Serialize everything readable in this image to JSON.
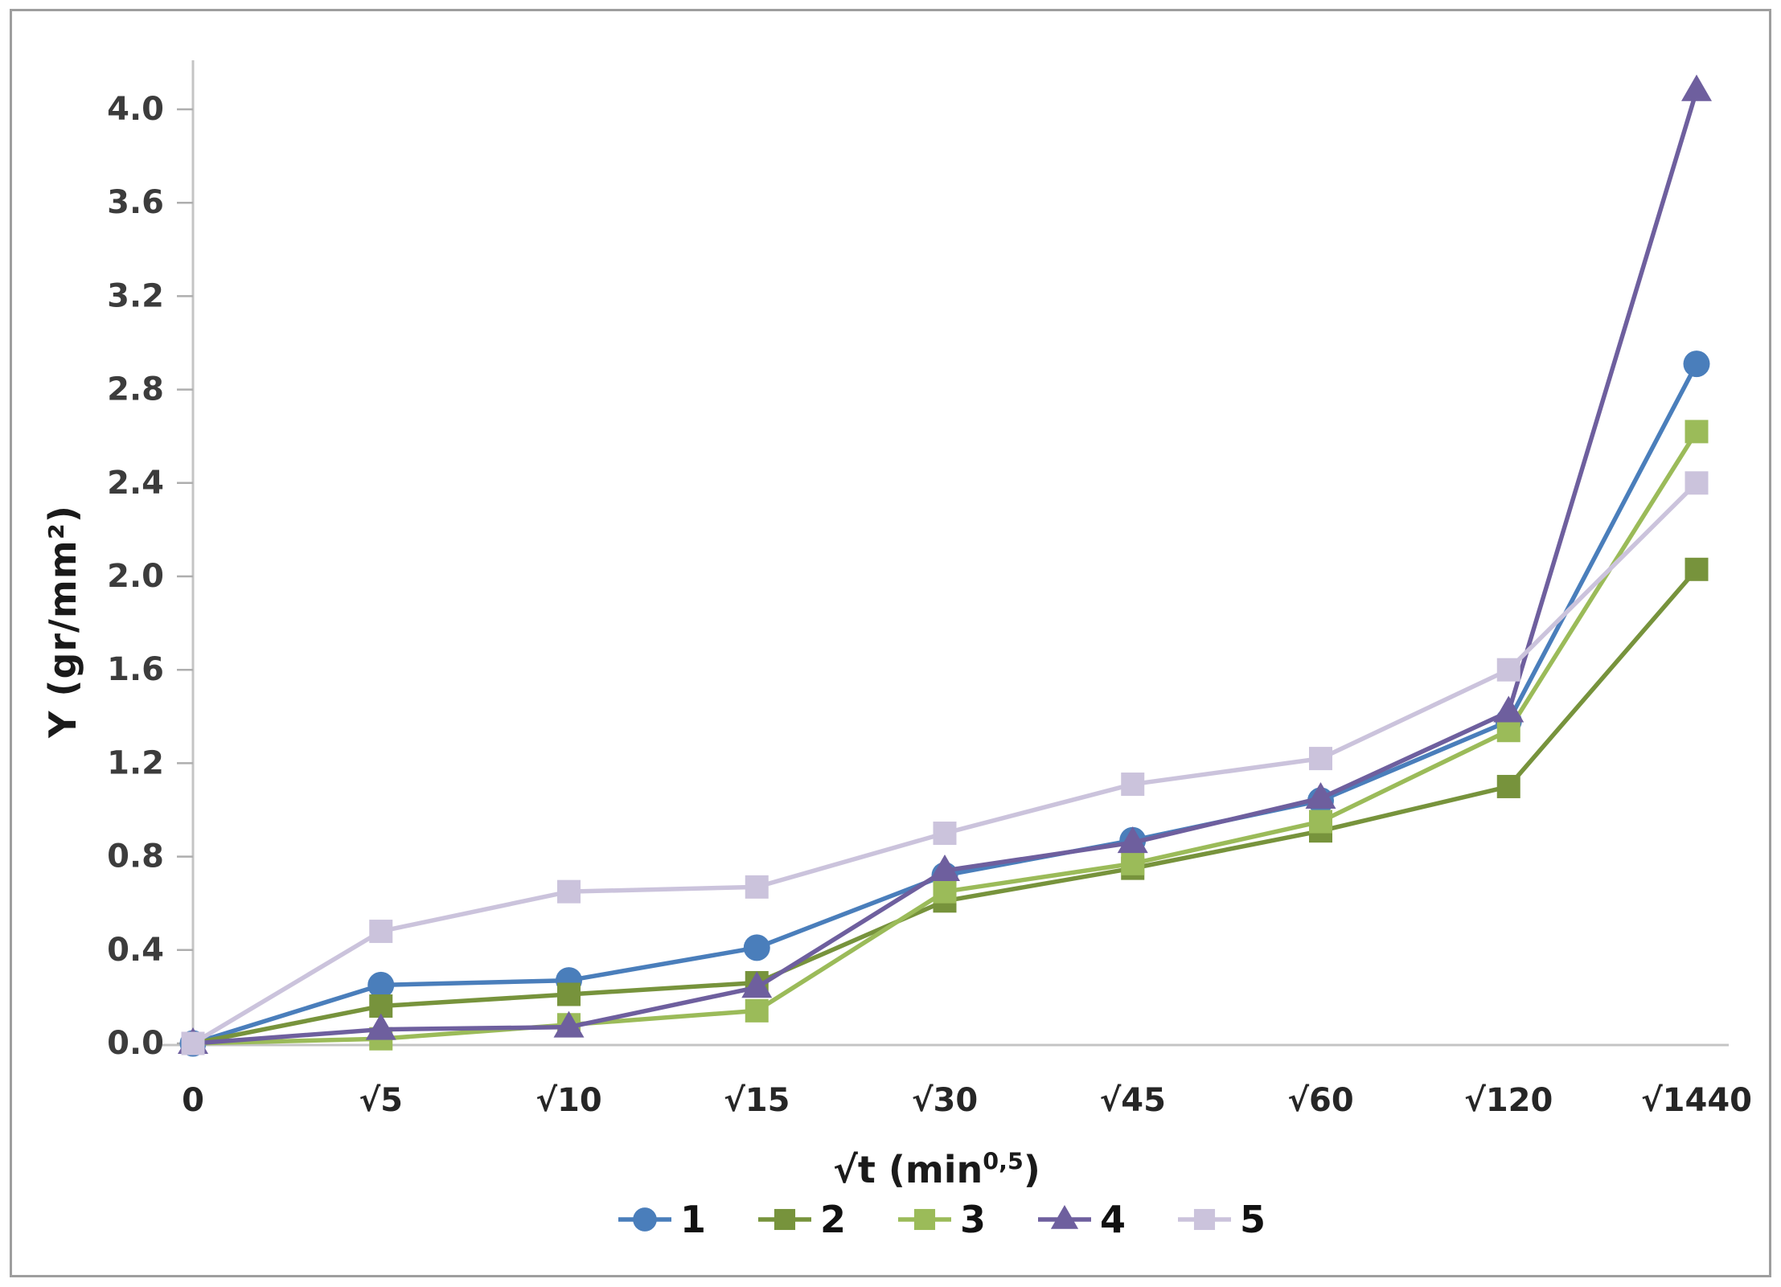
{
  "page": {
    "background_color": "#ffffff",
    "frame_border_color": "#9e9e9e"
  },
  "chart_data": {
    "type": "line",
    "title": "",
    "ylabel": "Y (gr/mm²)",
    "xlabel_prefix": "√t (min",
    "xlabel_superscript": "0,5",
    "xlabel_suffix": ")",
    "categories": [
      "0",
      "√5",
      "√10",
      "√15",
      "√30",
      "√45",
      "√60",
      "√120",
      "√1440"
    ],
    "ytick_labels": [
      "0.0",
      "0.4",
      "0.8",
      "1.2",
      "1.6",
      "2.0",
      "2.4",
      "2.8",
      "3.2",
      "3.6",
      "4.0"
    ],
    "ylim": [
      0,
      4.2
    ],
    "grid": false,
    "legend_position": "bottom",
    "axis_line_color": "#c4c4c4",
    "tick_mark_color": "#aeaeae",
    "ytick_label_color": "#3c3c3c",
    "xtick_label_color": "#262626",
    "series": [
      {
        "name": "1",
        "marker": "circle",
        "color": "#4a7ebb",
        "values": [
          0,
          0.25,
          0.27,
          0.41,
          0.72,
          0.87,
          1.04,
          1.38,
          2.91
        ]
      },
      {
        "name": "2",
        "marker": "square",
        "color": "#77933c",
        "values": [
          0,
          0.16,
          0.21,
          0.26,
          0.61,
          0.75,
          0.91,
          1.1,
          2.03
        ]
      },
      {
        "name": "3",
        "marker": "square",
        "color": "#9bbb59",
        "values": [
          0,
          0.02,
          0.08,
          0.14,
          0.65,
          0.77,
          0.95,
          1.34,
          2.62
        ]
      },
      {
        "name": "4",
        "marker": "triangle",
        "color": "#6e5f9e",
        "values": [
          0,
          0.06,
          0.07,
          0.24,
          0.74,
          0.86,
          1.05,
          1.42,
          4.08
        ]
      },
      {
        "name": "5",
        "marker": "square",
        "color": "#cbc3dc",
        "values": [
          0,
          0.48,
          0.65,
          0.67,
          0.9,
          1.11,
          1.22,
          1.6,
          2.4
        ]
      }
    ]
  }
}
